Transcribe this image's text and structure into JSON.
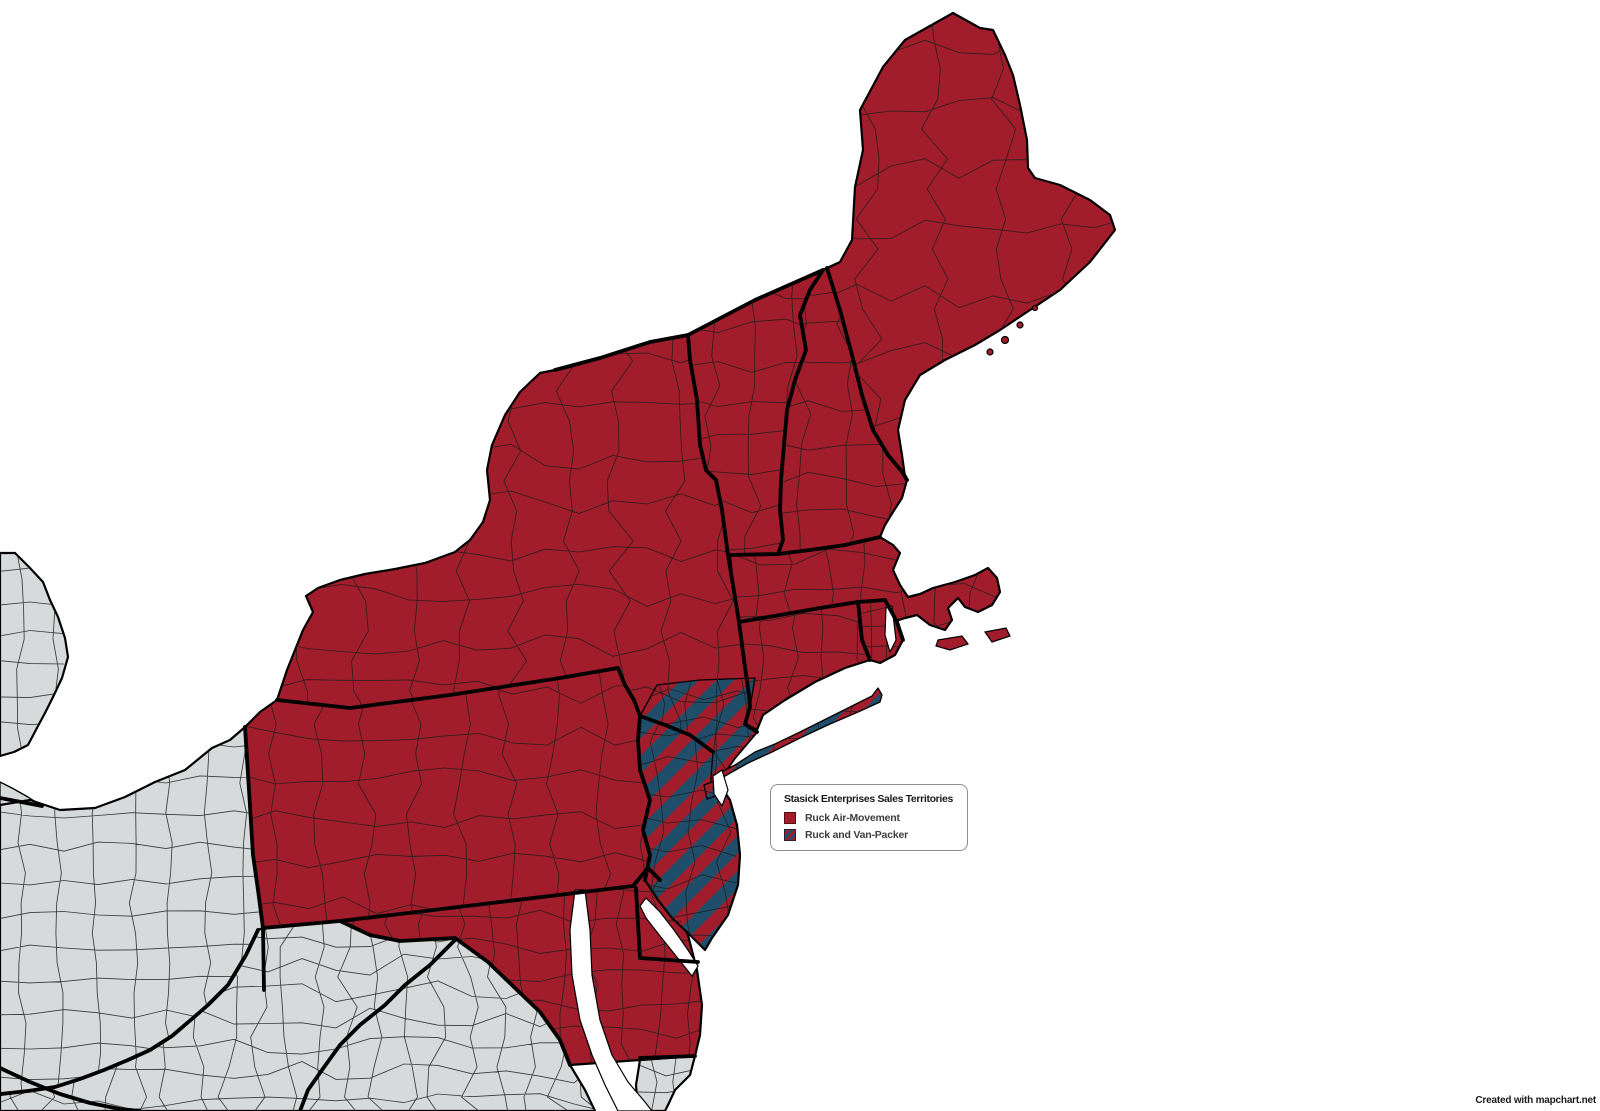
{
  "legend": {
    "title": "Stasick Enterprises Sales Territories",
    "items": [
      {
        "label": "Ruck Air-Movement",
        "swatch_icon": "solid-red-swatch-icon"
      },
      {
        "label": "Ruck and Van-Packer",
        "swatch_icon": "red-blue-striped-swatch-icon"
      }
    ]
  },
  "attribution": "Created with mapchart.net",
  "colors": {
    "territory-red": "#A11D2B",
    "territory-blue": "#1F4E6B",
    "unassigned-gray": "#D6DADA",
    "county-line": "#1d1d1d",
    "state-border": "#000000",
    "water": "#FFFFFF",
    "legend-border": "#8a8f92",
    "text": "#1A1A1A"
  }
}
